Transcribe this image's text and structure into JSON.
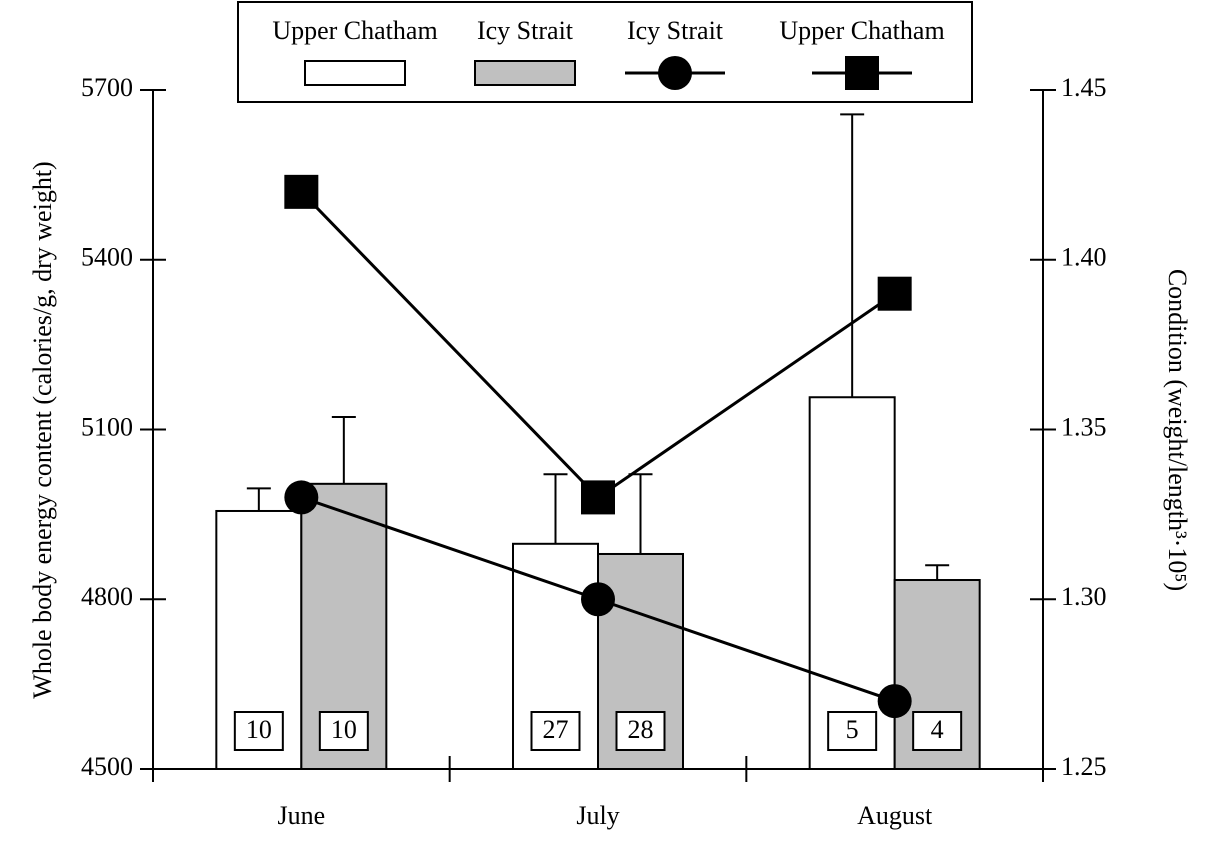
{
  "chart_data": {
    "type": "bar_line",
    "categories": [
      "June",
      "July",
      "August"
    ],
    "ylabel": "Whole body energy content (calories/g, dry weight)",
    "y2label": "Condition (weight/length³·10⁵)",
    "ylim": [
      4500,
      5700
    ],
    "yticks": [
      4500,
      4800,
      5100,
      5400,
      5700
    ],
    "y2lim": [
      1.25,
      1.45
    ],
    "y2ticks": [
      1.25,
      {
        "value": 1.3,
        "label": "1.30"
      },
      1.35,
      {
        "value": 1.4,
        "label": "1.40"
      },
      1.45
    ],
    "series": [
      {
        "name": "Upper Chatham",
        "type": "bar",
        "color": "#ffffff",
        "values": [
          4956,
          4898,
          5157
        ],
        "errors": [
          40,
          123,
          500
        ],
        "counts": [
          10,
          27,
          5
        ]
      },
      {
        "name": "Icy Strait",
        "type": "bar",
        "color": "#c0c0c0",
        "values": [
          5004,
          4880,
          4834
        ],
        "errors": [
          118,
          141,
          26
        ],
        "counts": [
          10,
          28,
          4
        ]
      },
      {
        "name": "Icy Strait",
        "type": "line",
        "marker": "circle",
        "color": "#000000",
        "axis": "y2",
        "values": [
          1.33,
          1.3,
          1.27
        ]
      },
      {
        "name": "Upper Chatham",
        "type": "line",
        "marker": "square",
        "color": "#000000",
        "axis": "y2",
        "values": [
          1.42,
          1.33,
          1.39
        ]
      }
    ],
    "legend": "top"
  }
}
